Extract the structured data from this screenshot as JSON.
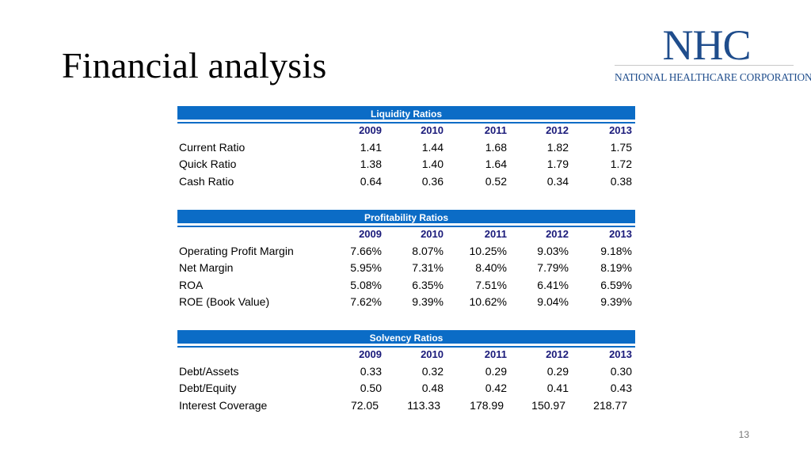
{
  "slide": {
    "title": "Financial analysis",
    "page_number": "13"
  },
  "logo": {
    "mark": "NHC",
    "name": "National HealthCare Corporation",
    "color": "#1f4d8c"
  },
  "colors": {
    "band": "#0b6cc6",
    "year_header": "#1a1a7a"
  },
  "years": [
    "2009",
    "2010",
    "2011",
    "2012",
    "2013"
  ],
  "sections": [
    {
      "title": "Liquidity Ratios",
      "rows": [
        {
          "label": "Current Ratio",
          "values": [
            "1.41",
            "1.44",
            "1.68",
            "1.82",
            "1.75"
          ]
        },
        {
          "label": "Quick Ratio",
          "values": [
            "1.38",
            "1.40",
            "1.64",
            "1.79",
            "1.72"
          ]
        },
        {
          "label": "Cash Ratio",
          "values": [
            "0.64",
            "0.36",
            "0.52",
            "0.34",
            "0.38"
          ]
        }
      ]
    },
    {
      "title": "Profitability Ratios",
      "rows": [
        {
          "label": "Operating Profit Margin",
          "values": [
            "7.66%",
            "8.07%",
            "10.25%",
            "9.03%",
            "9.18%"
          ]
        },
        {
          "label": "Net Margin",
          "values": [
            "5.95%",
            "7.31%",
            "8.40%",
            "7.79%",
            "8.19%"
          ]
        },
        {
          "label": "ROA",
          "values": [
            "5.08%",
            "6.35%",
            "7.51%",
            "6.41%",
            "6.59%"
          ]
        },
        {
          "label": "ROE (Book Value)",
          "values": [
            "7.62%",
            "9.39%",
            "10.62%",
            "9.04%",
            "9.39%"
          ]
        }
      ]
    },
    {
      "title": "Solvency Ratios",
      "rows": [
        {
          "label": "Debt/Assets",
          "values": [
            "0.33",
            "0.32",
            "0.29",
            "0.29",
            "0.30"
          ]
        },
        {
          "label": "Debt/Equity",
          "values": [
            "0.50",
            "0.48",
            "0.42",
            "0.41",
            "0.43"
          ]
        },
        {
          "label": "Interest Coverage",
          "values": [
            "72.05",
            "113.33",
            "178.99",
            "150.97",
            "218.77"
          ]
        }
      ]
    }
  ]
}
